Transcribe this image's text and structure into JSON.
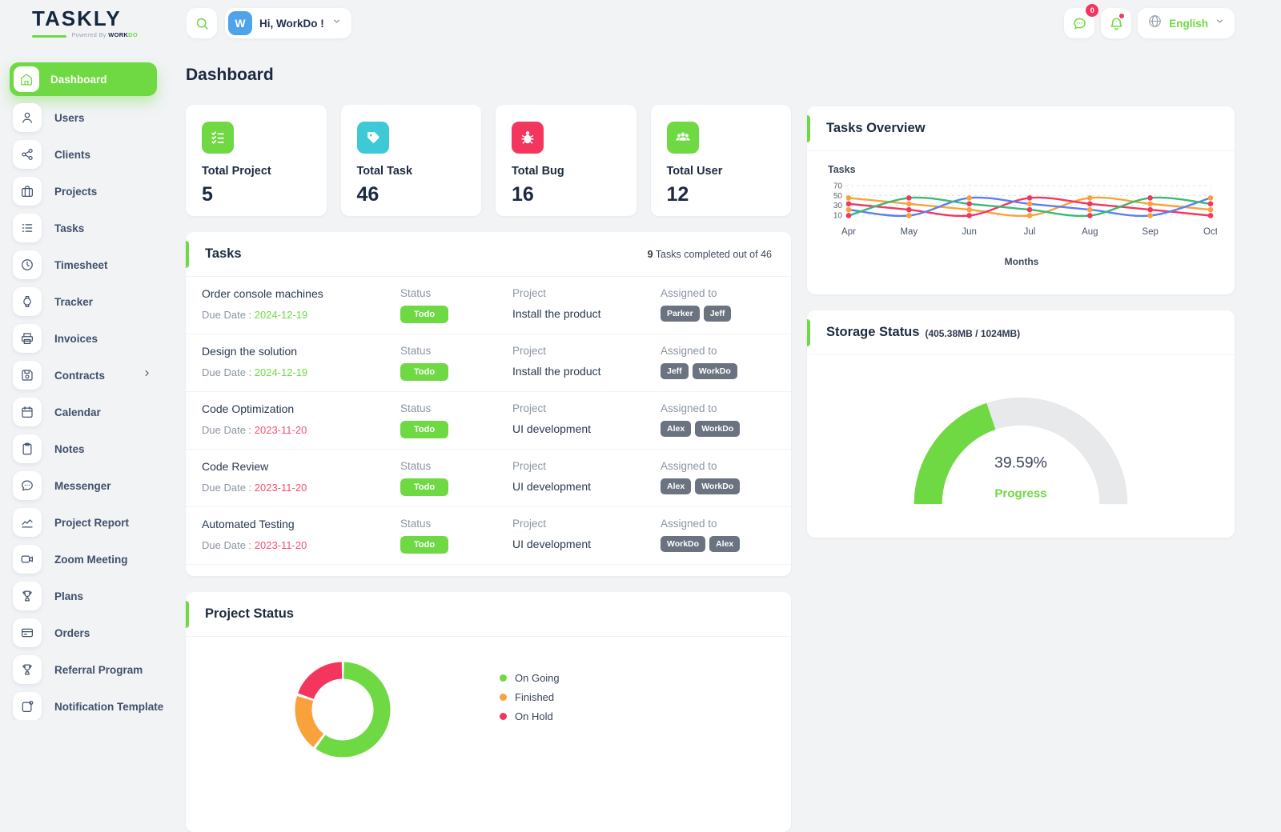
{
  "brand": {
    "name_primary": "TASK",
    "name_secondary": "LY",
    "powered_by": "Powered By",
    "powered_dark": "WORK",
    "powered_green": "DO"
  },
  "header": {
    "avatar_initial": "W",
    "greeting": "Hi, WorkDo !",
    "message_badge": "0",
    "language": "English"
  },
  "page": {
    "title": "Dashboard"
  },
  "sidebar": {
    "items": [
      {
        "label": "Dashboard",
        "icon": "home-icon",
        "active": true
      },
      {
        "label": "Users",
        "icon": "user-icon"
      },
      {
        "label": "Clients",
        "icon": "clients-icon"
      },
      {
        "label": "Projects",
        "icon": "briefcase-icon"
      },
      {
        "label": "Tasks",
        "icon": "list-icon"
      },
      {
        "label": "Timesheet",
        "icon": "clock-icon"
      },
      {
        "label": "Tracker",
        "icon": "watch-icon"
      },
      {
        "label": "Invoices",
        "icon": "printer-icon"
      },
      {
        "label": "Contracts",
        "icon": "save-icon",
        "has_submenu": true
      },
      {
        "label": "Calendar",
        "icon": "calendar-icon"
      },
      {
        "label": "Notes",
        "icon": "clipboard-icon"
      },
      {
        "label": "Messenger",
        "icon": "chat-icon"
      },
      {
        "label": "Project Report",
        "icon": "chart-icon"
      },
      {
        "label": "Zoom Meeting",
        "icon": "video-icon"
      },
      {
        "label": "Plans",
        "icon": "trophy-icon"
      },
      {
        "label": "Orders",
        "icon": "credit-card-icon"
      },
      {
        "label": "Referral Program",
        "icon": "award-icon"
      },
      {
        "label": "Notification Template",
        "icon": "template-icon"
      }
    ]
  },
  "stats": [
    {
      "label": "Total Project",
      "value": "5",
      "icon": "checklist-icon",
      "color": "#6FD943"
    },
    {
      "label": "Total Task",
      "value": "46",
      "icon": "tag-icon",
      "color": "#3EC9D6"
    },
    {
      "label": "Total Bug",
      "value": "16",
      "icon": "bug-icon",
      "color": "#F4365F"
    },
    {
      "label": "Total User",
      "value": "12",
      "icon": "users-icon",
      "color": "#6FD943"
    }
  ],
  "tasks_card": {
    "title": "Tasks",
    "summary_count": "9",
    "summary_text": "Tasks completed out of 46",
    "labels": {
      "status": "Status",
      "project": "Project",
      "assigned": "Assigned to",
      "due_prefix": "Due Date :"
    },
    "rows": [
      {
        "name": "Order console machines",
        "due_date": "2024-12-19",
        "due_color": "green",
        "status": "Todo",
        "project": "Install the product",
        "assigned": [
          "Parker",
          "Jeff"
        ]
      },
      {
        "name": "Design the solution",
        "due_date": "2024-12-19",
        "due_color": "green",
        "status": "Todo",
        "project": "Install the product",
        "assigned": [
          "Jeff",
          "WorkDo"
        ]
      },
      {
        "name": "Code Optimization",
        "due_date": "2023-11-20",
        "due_color": "red",
        "status": "Todo",
        "project": "UI development",
        "assigned": [
          "Alex",
          "WorkDo"
        ]
      },
      {
        "name": "Code Review",
        "due_date": "2023-11-20",
        "due_color": "red",
        "status": "Todo",
        "project": "UI development",
        "assigned": [
          "Alex",
          "WorkDo"
        ]
      },
      {
        "name": "Automated Testing",
        "due_date": "2023-11-20",
        "due_color": "red",
        "status": "Todo",
        "project": "UI development",
        "assigned": [
          "WorkDo",
          "Alex"
        ]
      }
    ]
  },
  "project_status_card": {
    "title": "Project Status"
  },
  "tasks_overview_card": {
    "title": "Tasks Overview"
  },
  "storage_card": {
    "title": "Storage Status",
    "usage": "(405.38MB / 1024MB)",
    "percent": "39.59%",
    "caption": "Progress"
  },
  "chart_data": [
    {
      "id": "tasks-overview-line",
      "type": "line",
      "title": "Tasks Overview",
      "xlabel": "Months",
      "ylabel": "Tasks",
      "x": [
        "Apr",
        "May",
        "Jun",
        "Jul",
        "Aug",
        "Sep",
        "Oct"
      ],
      "yticks": [
        10,
        30,
        50,
        70
      ],
      "ylim": [
        0,
        75
      ],
      "grid": true,
      "legend_position": "none",
      "series": [
        {
          "name": "series-orange",
          "color": "#F9A23B",
          "marker": "#F9A23B",
          "values": [
            45,
            33,
            21,
            9,
            45,
            33,
            21
          ]
        },
        {
          "name": "series-pink",
          "color": "#F4365F",
          "marker": "#F4365F",
          "values": [
            33,
            21,
            9,
            45,
            33,
            21,
            9
          ]
        },
        {
          "name": "series-blue",
          "color": "#5B7FF2",
          "marker": "#F9A23B",
          "values": [
            21,
            9,
            45,
            33,
            21,
            9,
            45
          ]
        },
        {
          "name": "series-green",
          "color": "#3CB878",
          "marker": "#F4365F",
          "values": [
            9,
            45,
            33,
            21,
            9,
            45,
            33
          ]
        }
      ]
    },
    {
      "id": "project-status-donut",
      "type": "pie",
      "title": "Project Status",
      "labels": [
        "On Going",
        "Finished",
        "On Hold"
      ],
      "values": [
        60,
        20,
        20
      ],
      "colors": [
        "#6FD943",
        "#F9A23B",
        "#F4365F"
      ],
      "legend_position": "right"
    },
    {
      "id": "storage-gauge",
      "type": "gauge",
      "title": "Storage Status",
      "percent": 39.59,
      "max": 100,
      "label": "Progress",
      "fill": "#6FD943",
      "track": "#E7E9EB"
    }
  ]
}
